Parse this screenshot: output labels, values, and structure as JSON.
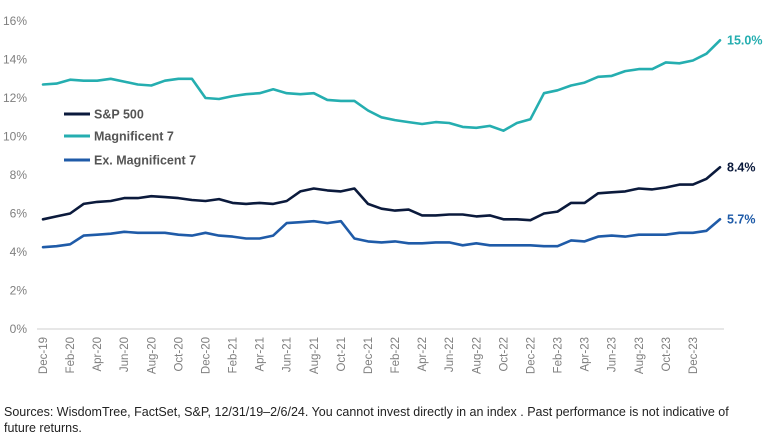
{
  "chart_data": {
    "type": "line",
    "title": "",
    "xlabel": "",
    "ylabel": "",
    "ylim": [
      0,
      16
    ],
    "y_ticks": [
      "0%",
      "2%",
      "4%",
      "6%",
      "8%",
      "10%",
      "12%",
      "14%",
      "16%"
    ],
    "y_tick_values": [
      0,
      2,
      4,
      6,
      8,
      10,
      12,
      14,
      16
    ],
    "grid": false,
    "legend_position": "left, inside plot",
    "x_tick_labels": [
      "Dec-19",
      "Feb-20",
      "Apr-20",
      "Jun-20",
      "Aug-20",
      "Oct-20",
      "Dec-20",
      "Feb-21",
      "Apr-21",
      "Jun-21",
      "Aug-21",
      "Oct-21",
      "Dec-21",
      "Feb-22",
      "Apr-22",
      "Jun-22",
      "Aug-22",
      "Oct-22",
      "Dec-22",
      "Feb-23",
      "Apr-23",
      "Jun-23",
      "Aug-23",
      "Oct-23",
      "Dec-23"
    ],
    "x": [
      "Dec-19",
      "Jan-20",
      "Feb-20",
      "Mar-20",
      "Apr-20",
      "May-20",
      "Jun-20",
      "Jul-20",
      "Aug-20",
      "Sep-20",
      "Oct-20",
      "Nov-20",
      "Dec-20",
      "Jan-21",
      "Feb-21",
      "Mar-21",
      "Apr-21",
      "May-21",
      "Jun-21",
      "Jul-21",
      "Aug-21",
      "Sep-21",
      "Oct-21",
      "Nov-21",
      "Dec-21",
      "Jan-22",
      "Feb-22",
      "Mar-22",
      "Apr-22",
      "May-22",
      "Jun-22",
      "Jul-22",
      "Aug-22",
      "Sep-22",
      "Oct-22",
      "Nov-22",
      "Dec-22",
      "Jan-23",
      "Feb-23",
      "Mar-23",
      "Apr-23",
      "May-23",
      "Jun-23",
      "Jul-23",
      "Aug-23",
      "Sep-23",
      "Oct-23",
      "Nov-23",
      "Dec-23",
      "Jan-24",
      "Feb-24"
    ],
    "series": [
      {
        "name": "S&P 500",
        "color": "#0b1a3c",
        "values": [
          5.7,
          5.85,
          6.0,
          6.5,
          6.6,
          6.65,
          6.8,
          6.8,
          6.9,
          6.85,
          6.8,
          6.7,
          6.65,
          6.75,
          6.55,
          6.5,
          6.55,
          6.5,
          6.65,
          7.15,
          7.3,
          7.2,
          7.15,
          7.3,
          6.5,
          6.25,
          6.15,
          6.2,
          5.9,
          5.9,
          5.95,
          5.95,
          5.85,
          5.9,
          5.7,
          5.7,
          5.65,
          6.0,
          6.1,
          6.55,
          6.55,
          7.05,
          7.1,
          7.15,
          7.3,
          7.25,
          7.35,
          7.5,
          7.5,
          7.8,
          8.4
        ],
        "end_label": "8.4%"
      },
      {
        "name": "Magnificent 7",
        "color": "#25aeb0",
        "values": [
          12.7,
          12.75,
          12.95,
          12.9,
          12.9,
          13.0,
          12.85,
          12.7,
          12.65,
          12.9,
          13.0,
          13.0,
          12.0,
          11.95,
          12.1,
          12.2,
          12.25,
          12.45,
          12.25,
          12.2,
          12.25,
          11.9,
          11.85,
          11.85,
          11.35,
          11.0,
          10.85,
          10.75,
          10.65,
          10.75,
          10.7,
          10.5,
          10.45,
          10.55,
          10.3,
          10.7,
          10.9,
          12.25,
          12.4,
          12.65,
          12.8,
          13.1,
          13.15,
          13.4,
          13.5,
          13.5,
          13.85,
          13.8,
          13.95,
          14.3,
          15.0
        ],
        "end_label": "15.0%"
      },
      {
        "name": "Ex. Magnificent 7",
        "color": "#1f5ba8",
        "values": [
          4.25,
          4.3,
          4.4,
          4.85,
          4.9,
          4.95,
          5.05,
          5.0,
          5.0,
          5.0,
          4.9,
          4.85,
          5.0,
          4.85,
          4.8,
          4.7,
          4.7,
          4.85,
          5.5,
          5.55,
          5.6,
          5.5,
          5.6,
          4.7,
          4.55,
          4.5,
          4.55,
          4.45,
          4.45,
          4.5,
          4.5,
          4.35,
          4.45,
          4.35,
          4.35,
          4.35,
          4.35,
          4.3,
          4.3,
          4.6,
          4.55,
          4.8,
          4.85,
          4.8,
          4.9,
          4.9,
          4.9,
          5.0,
          5.0,
          5.1,
          5.7
        ],
        "end_label": "5.7%"
      }
    ]
  },
  "source_note": "Sources: WisdomTree, FactSet, S&P, 12/31/19–2/6/24. You cannot invest directly in an index . Past performance is not indicative of future returns."
}
